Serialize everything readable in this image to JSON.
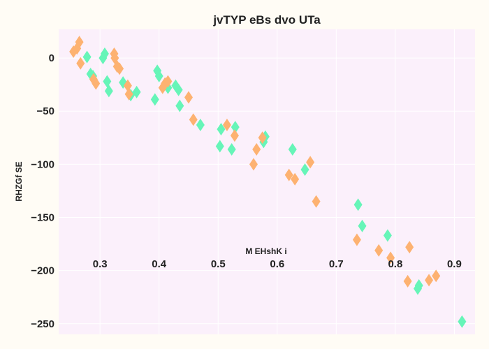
{
  "chart_data": {
    "type": "scatter",
    "title": "jvTYP eBs dvo UTa",
    "xlabel": "M EHshK i",
    "ylabel": "RHZGf SE",
    "xlim": [
      0.23,
      0.935
    ],
    "ylim": [
      -260,
      27
    ],
    "xticks": [
      "0.3",
      "0.4",
      "0.5",
      "0.6",
      "0.7",
      "0.8",
      "0.9"
    ],
    "yticks": [
      "0",
      "−50",
      "−100",
      "−150",
      "−200",
      "−250"
    ],
    "xtick_values": [
      0.3,
      0.4,
      0.5,
      0.6,
      0.7,
      0.8,
      0.9
    ],
    "ytick_values": [
      0,
      -50,
      -100,
      -150,
      -200,
      -250
    ],
    "grid": true,
    "marker": "diamond",
    "colors": {
      "background": "#fffcf5",
      "plot_background": "#fbf0fb",
      "grid": "#ffffff"
    },
    "series": [
      {
        "color": "#66f5b8",
        "points": [
          [
            0.278,
            1
          ],
          [
            0.284,
            -15
          ],
          [
            0.288,
            -17
          ],
          [
            0.305,
            0
          ],
          [
            0.308,
            4
          ],
          [
            0.312,
            -22
          ],
          [
            0.315,
            -31
          ],
          [
            0.339,
            -23
          ],
          [
            0.352,
            -35
          ],
          [
            0.362,
            -32
          ],
          [
            0.393,
            -39
          ],
          [
            0.397,
            -12
          ],
          [
            0.4,
            -17
          ],
          [
            0.415,
            -28
          ],
          [
            0.428,
            -26
          ],
          [
            0.433,
            -30
          ],
          [
            0.435,
            -45
          ],
          [
            0.47,
            -63
          ],
          [
            0.503,
            -83
          ],
          [
            0.505,
            -67
          ],
          [
            0.523,
            -86
          ],
          [
            0.529,
            -65
          ],
          [
            0.577,
            -79
          ],
          [
            0.58,
            -74
          ],
          [
            0.626,
            -86
          ],
          [
            0.647,
            -105
          ],
          [
            0.737,
            -138
          ],
          [
            0.744,
            -158
          ],
          [
            0.787,
            -167
          ],
          [
            0.838,
            -217
          ],
          [
            0.84,
            -214
          ],
          [
            0.913,
            -248
          ]
        ]
      },
      {
        "color": "#fdb271",
        "points": [
          [
            0.255,
            6
          ],
          [
            0.261,
            9
          ],
          [
            0.265,
            15
          ],
          [
            0.267,
            -5
          ],
          [
            0.289,
            -20
          ],
          [
            0.293,
            -24
          ],
          [
            0.324,
            4
          ],
          [
            0.325,
            0
          ],
          [
            0.329,
            -8
          ],
          [
            0.333,
            -10
          ],
          [
            0.347,
            -26
          ],
          [
            0.349,
            -34
          ],
          [
            0.406,
            -28
          ],
          [
            0.41,
            -24
          ],
          [
            0.415,
            -22
          ],
          [
            0.45,
            -37
          ],
          [
            0.458,
            -58
          ],
          [
            0.515,
            -63
          ],
          [
            0.528,
            -73
          ],
          [
            0.56,
            -100
          ],
          [
            0.565,
            -86
          ],
          [
            0.575,
            -75
          ],
          [
            0.62,
            -110
          ],
          [
            0.63,
            -114
          ],
          [
            0.656,
            -98
          ],
          [
            0.666,
            -135
          ],
          [
            0.735,
            -171
          ],
          [
            0.772,
            -181
          ],
          [
            0.792,
            -188
          ],
          [
            0.821,
            -210
          ],
          [
            0.824,
            -178
          ],
          [
            0.857,
            -209
          ],
          [
            0.869,
            -205
          ]
        ]
      }
    ]
  }
}
